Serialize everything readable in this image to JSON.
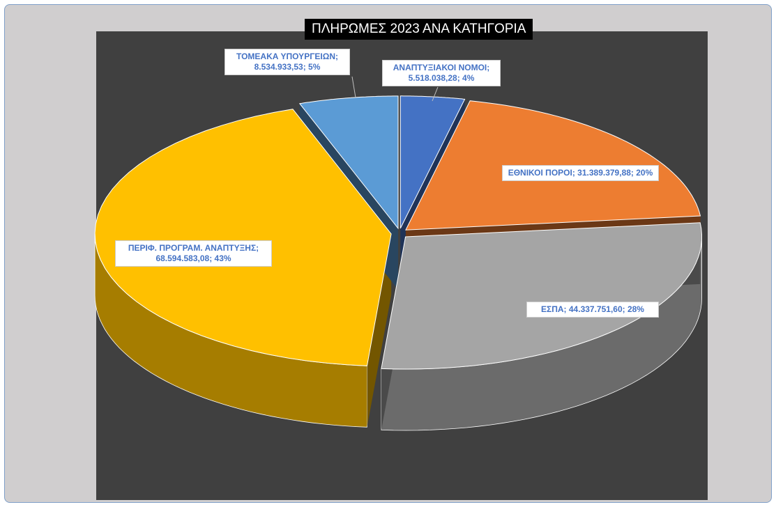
{
  "chart_data": {
    "type": "pie",
    "title": "ΠΛΗΡΩΜΕΣ 2023 ΑΝΑ ΚΑΤΗΓΟΡΙΑ",
    "values": [
      5518038.28,
      31389379.88,
      44337751.6,
      68594583.08,
      8534933.53
    ],
    "value_labels": [
      "ΑΝΑΠΤΥΞΙΑΚΟΙ ΝΟΜΟΙ; 5.518.038,28; 4%",
      "ΕΘΝΙΚΟΙ ΠΟΡΟΙ; 31.389.379,88; 20%",
      "ΕΣΠΑ; 44.337.751,60; 28%",
      "ΠΕΡΙΦ. ΠΡΟΓΡΑΜ. ΑΝΑΠΤΥΞΗΣ; 68.594.583,08; 43%",
      "ΤΟΜΕΑΚΑ ΥΠΟΥΡΓΕΙΩΝ; 8.534.933,53; 5%"
    ],
    "colors": [
      "#4472c4",
      "#ed7d31",
      "#a5a5a5",
      "#ffc000",
      "#5b9bd5"
    ]
  }
}
